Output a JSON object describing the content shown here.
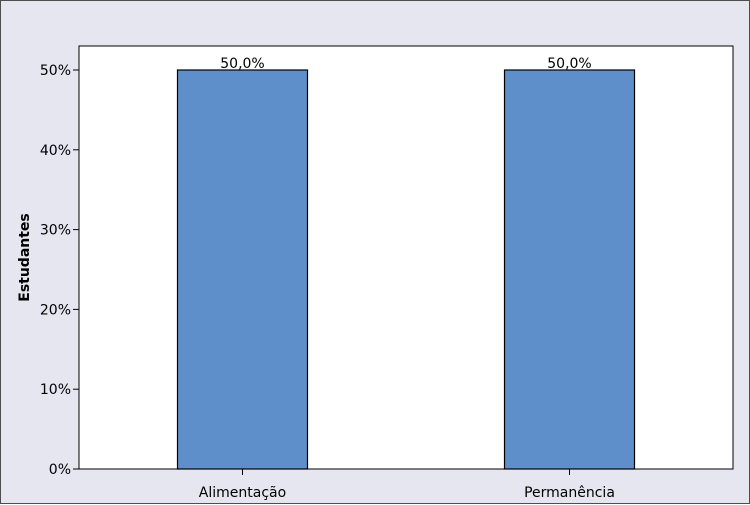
{
  "chart_data": {
    "type": "bar",
    "categories": [
      "Alimentação",
      "Permanência"
    ],
    "values": [
      50.0,
      50.0
    ],
    "data_labels": [
      "50,0%",
      "50,0%"
    ],
    "ylabel": "Estudantes",
    "xlabel": "",
    "ylim": [
      0,
      50
    ],
    "yticks": [
      0,
      10,
      20,
      30,
      40,
      50
    ],
    "ytick_labels": [
      "0%",
      "10%",
      "20%",
      "30%",
      "40%",
      "50%"
    ],
    "grid": false,
    "legend": "none"
  },
  "colors": {
    "background": "#e6e6f0",
    "plot_area": "#ffffff",
    "bar_fill": "#5f8fcb",
    "bar_stroke": "#000000"
  }
}
